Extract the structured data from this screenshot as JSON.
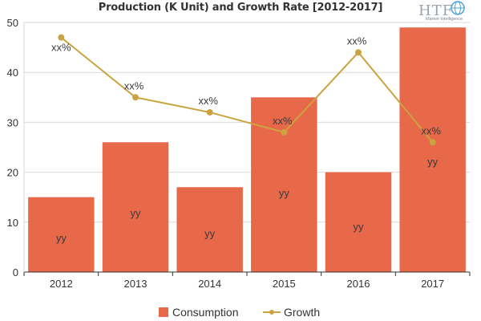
{
  "chart_data": {
    "type": "bar",
    "title": "Production (K Unit) and Growth Rate [2012-2017]",
    "categories": [
      "2012",
      "2013",
      "2014",
      "2015",
      "2016",
      "2017"
    ],
    "series": [
      {
        "name": "Consumption",
        "type": "bar",
        "values": [
          15,
          26,
          17,
          35,
          20,
          49
        ],
        "labels": [
          "yy",
          "yy",
          "yy",
          "yy",
          "yy",
          "yy"
        ]
      },
      {
        "name": "Growth",
        "type": "line",
        "values": [
          47,
          35,
          32,
          28,
          44,
          26
        ],
        "labels": [
          "xx%",
          "xx%",
          "xx%",
          "xx%",
          "xx%",
          "xx%"
        ]
      }
    ],
    "yticks": [
      "0",
      "10",
      "20",
      "30",
      "40",
      "50"
    ],
    "ylim": [
      0,
      50
    ],
    "xlabel": "",
    "ylabel": "",
    "grid": true,
    "legend": "bottom"
  },
  "logo": {
    "text": "HTF",
    "subtitle": "Market Intelligence"
  },
  "colors": {
    "bar": "#e8684a",
    "line": "#c9a441",
    "grid": "#d9d9d9",
    "axis": "#333333",
    "text": "#333333"
  }
}
